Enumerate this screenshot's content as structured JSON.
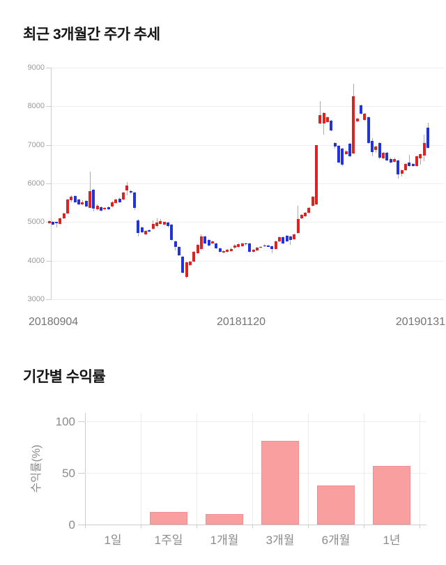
{
  "chart_data": [
    {
      "type": "candlestick",
      "title": "최근 3개월간 주가 추세",
      "ylim": [
        3000,
        9000
      ],
      "y_ticks": [
        9000,
        8000,
        7000,
        6000,
        5000,
        4000,
        3000
      ],
      "x_tick_labels": [
        "20180904",
        "20181120",
        "20190131"
      ],
      "up_color": "#dd2222",
      "down_color": "#2233dd",
      "wick_color": "#aaaaaa",
      "grid_color": "#ededed",
      "axis_color": "#cccccc",
      "tick_label_color": "#999999",
      "candles_ohlc": [
        [
          4970,
          5050,
          4950,
          5030
        ],
        [
          5000,
          5020,
          4920,
          4940
        ],
        [
          5000,
          5010,
          4860,
          4980
        ],
        [
          4950,
          5110,
          4940,
          5100
        ],
        [
          5100,
          5240,
          5080,
          5220
        ],
        [
          5220,
          5600,
          5200,
          5580
        ],
        [
          5560,
          5700,
          5520,
          5650
        ],
        [
          5670,
          5690,
          5500,
          5520
        ],
        [
          5580,
          5600,
          5440,
          5460
        ],
        [
          5460,
          5560,
          5440,
          5520
        ],
        [
          5540,
          5560,
          5380,
          5400
        ],
        [
          5370,
          6300,
          5360,
          5810
        ],
        [
          5830,
          5850,
          5270,
          5350
        ],
        [
          5340,
          5460,
          5300,
          5430
        ],
        [
          5390,
          5410,
          5280,
          5300
        ],
        [
          5330,
          5380,
          5310,
          5360
        ],
        [
          5390,
          5400,
          5310,
          5330
        ],
        [
          5400,
          5540,
          5390,
          5520
        ],
        [
          5490,
          5600,
          5470,
          5580
        ],
        [
          5610,
          5630,
          5500,
          5520
        ],
        [
          5580,
          5780,
          5560,
          5760
        ],
        [
          5820,
          6040,
          5700,
          5940
        ],
        [
          5800,
          5830,
          5720,
          5760
        ],
        [
          5760,
          5780,
          5310,
          5370
        ],
        [
          5050,
          5070,
          4620,
          4710
        ],
        [
          4860,
          4880,
          4720,
          4740
        ],
        [
          4680,
          4790,
          4660,
          4770
        ],
        [
          4790,
          4800,
          4730,
          4750
        ],
        [
          4830,
          5050,
          4810,
          4950
        ],
        [
          4890,
          5100,
          4870,
          4980
        ],
        [
          4950,
          5070,
          4930,
          5020
        ],
        [
          4930,
          5010,
          4910,
          5000
        ],
        [
          4980,
          5000,
          4870,
          4890
        ],
        [
          4930,
          4950,
          4510,
          4530
        ],
        [
          4500,
          4520,
          4270,
          4350
        ],
        [
          4350,
          4370,
          4120,
          4140
        ],
        [
          4100,
          4120,
          3660,
          3690
        ],
        [
          3580,
          3980,
          3540,
          3960
        ],
        [
          3890,
          4000,
          3850,
          3980
        ],
        [
          3980,
          4240,
          3960,
          4230
        ],
        [
          4200,
          4430,
          4180,
          4410
        ],
        [
          4300,
          4680,
          4260,
          4620
        ],
        [
          4620,
          4640,
          4430,
          4450
        ],
        [
          4530,
          4550,
          4370,
          4390
        ],
        [
          4440,
          4520,
          4420,
          4500
        ],
        [
          4440,
          4460,
          4300,
          4320
        ],
        [
          4320,
          4340,
          4210,
          4230
        ],
        [
          4210,
          4260,
          4190,
          4240
        ],
        [
          4230,
          4310,
          4210,
          4290
        ],
        [
          4250,
          4330,
          4230,
          4310
        ],
        [
          4330,
          4420,
          4310,
          4400
        ],
        [
          4360,
          4450,
          4340,
          4430
        ],
        [
          4380,
          4470,
          4360,
          4450
        ],
        [
          4450,
          4470,
          4400,
          4420
        ],
        [
          4450,
          4470,
          4210,
          4230
        ],
        [
          4230,
          4300,
          4210,
          4280
        ],
        [
          4270,
          4350,
          4250,
          4330
        ],
        [
          4330,
          4380,
          4310,
          4360
        ],
        [
          4400,
          4420,
          4360,
          4380
        ],
        [
          4390,
          4410,
          4350,
          4370
        ],
        [
          4380,
          4400,
          4200,
          4300
        ],
        [
          4300,
          4520,
          4280,
          4500
        ],
        [
          4500,
          4620,
          4480,
          4600
        ],
        [
          4600,
          4620,
          4430,
          4450
        ],
        [
          4650,
          4670,
          4480,
          4500
        ],
        [
          4620,
          4640,
          4410,
          4530
        ],
        [
          4560,
          4700,
          4540,
          4680
        ],
        [
          4710,
          5430,
          4690,
          5070
        ],
        [
          5100,
          5210,
          5080,
          5190
        ],
        [
          5150,
          5260,
          5130,
          5240
        ],
        [
          5240,
          5390,
          5220,
          5370
        ],
        [
          5430,
          5680,
          5410,
          5660
        ],
        [
          5460,
          7000,
          5440,
          7000
        ],
        [
          7560,
          8135,
          7540,
          7775
        ],
        [
          7560,
          7850,
          7270,
          7830
        ],
        [
          7590,
          7740,
          7570,
          7720
        ],
        [
          7630,
          7650,
          7360,
          7380
        ],
        [
          7050,
          7070,
          6900,
          6950
        ],
        [
          6970,
          6990,
          6530,
          6550
        ],
        [
          6900,
          6920,
          6460,
          6480
        ],
        [
          6760,
          6860,
          6740,
          6840
        ],
        [
          7030,
          7050,
          6680,
          6700
        ],
        [
          6780,
          8590,
          6760,
          8260
        ],
        [
          7610,
          7700,
          7590,
          7680
        ],
        [
          8020,
          8040,
          7790,
          7810
        ],
        [
          7650,
          7830,
          7630,
          7810
        ],
        [
          7720,
          7740,
          7030,
          7050
        ],
        [
          7100,
          7180,
          6700,
          6820
        ],
        [
          6870,
          6980,
          6790,
          6960
        ],
        [
          7050,
          7070,
          6640,
          6660
        ],
        [
          6650,
          6820,
          6630,
          6800
        ],
        [
          6800,
          6820,
          6580,
          6600
        ],
        [
          6640,
          6660,
          6520,
          6540
        ],
        [
          6560,
          6660,
          6540,
          6640
        ],
        [
          6600,
          6620,
          6120,
          6240
        ],
        [
          6250,
          6370,
          6180,
          6350
        ],
        [
          6350,
          6520,
          6330,
          6500
        ],
        [
          6550,
          6750,
          6430,
          6450
        ],
        [
          6500,
          6520,
          6430,
          6450
        ],
        [
          6450,
          6720,
          6430,
          6700
        ],
        [
          6650,
          6780,
          6480,
          6760
        ],
        [
          6730,
          7270,
          6570,
          7050
        ],
        [
          7450,
          7570,
          6910,
          6930
        ]
      ]
    },
    {
      "type": "bar",
      "title": "기간별 수익률",
      "ylabel": "수익률(%)",
      "ylim": [
        0,
        100
      ],
      "y_ticks": [
        100,
        50,
        0
      ],
      "categories": [
        "1일",
        "1주일",
        "1개월",
        "3개월",
        "6개월",
        "1년"
      ],
      "values": [
        0,
        12,
        10,
        81,
        38,
        57
      ],
      "bar_fill": "#fa9f9f",
      "bar_border": "#f08f8f",
      "grid_color": "#ededed",
      "axis_color": "#cccccc",
      "tick_label_color": "#8a8a8a"
    }
  ]
}
